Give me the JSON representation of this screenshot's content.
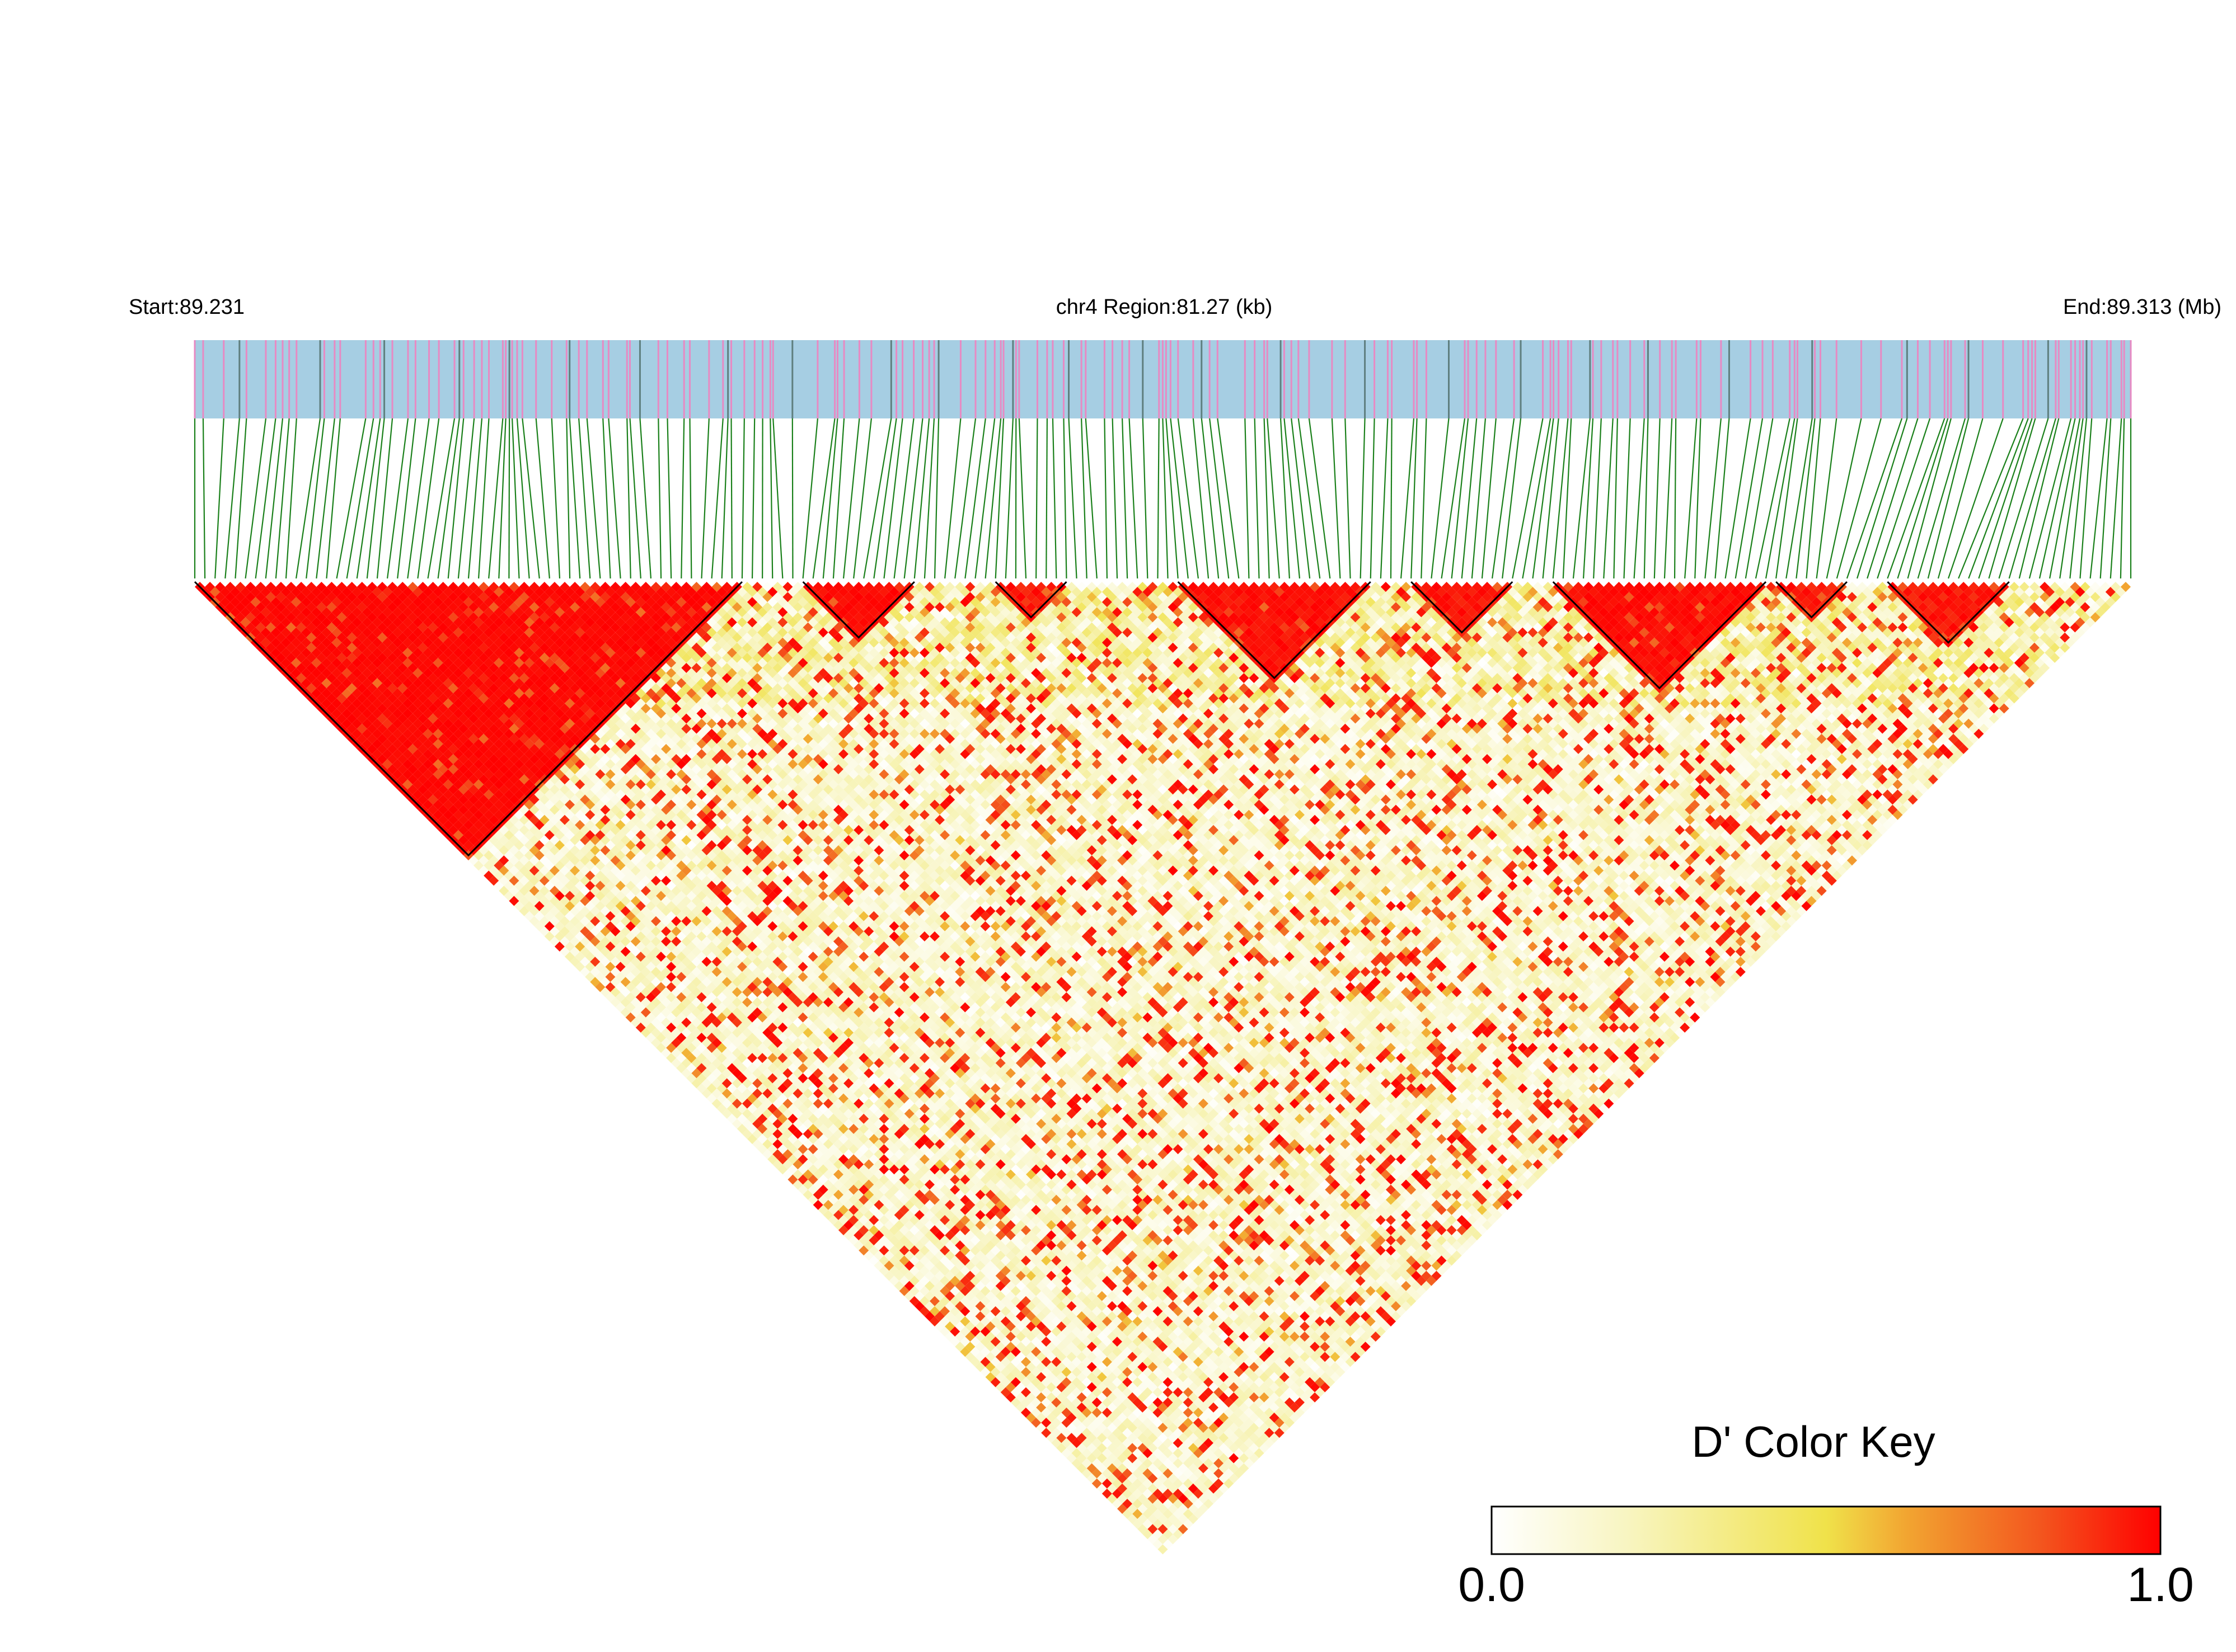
{
  "chart_data": {
    "type": "heatmap",
    "subtype": "linkage-disequilibrium-triangle",
    "chromosome": "chr4",
    "start_label": "Start:89.231",
    "region_label": "chr4 Region:81.27 (kb)",
    "end_label": "End:89.313 (Mb)",
    "start_mb": 89.231,
    "end_mb": 89.313,
    "region_kb": 81.27,
    "metric": "D'",
    "n_snps_approx": 192,
    "high_ld_blocks": [
      {
        "from_snp": 1,
        "to_snp": 55,
        "mean_dprime": 0.97
      },
      {
        "from_snp": 61,
        "to_snp": 72,
        "mean_dprime": 0.95
      },
      {
        "from_snp": 80,
        "to_snp": 87,
        "mean_dprime": 0.9
      },
      {
        "from_snp": 98,
        "to_snp": 117,
        "mean_dprime": 0.93
      },
      {
        "from_snp": 121,
        "to_snp": 131,
        "mean_dprime": 0.92
      },
      {
        "from_snp": 135,
        "to_snp": 156,
        "mean_dprime": 0.95
      },
      {
        "from_snp": 157,
        "to_snp": 164,
        "mean_dprime": 0.9
      },
      {
        "from_snp": 168,
        "to_snp": 180,
        "mean_dprime": 0.9
      }
    ],
    "color_key": {
      "title": "D' Color Key",
      "min_label": "0.0",
      "max_label": "1.0",
      "min": 0.0,
      "max": 1.0,
      "colors": [
        "#ffffff",
        "#f7f3b4",
        "#f0e24a",
        "#f39a2c",
        "#f04a1c",
        "#ff0000"
      ]
    },
    "track_colors": {
      "background": "#a6cee3",
      "snp_line": "#e78ac3",
      "snp_line_alt": "#5f7f7f",
      "connector": "#1a801a"
    }
  }
}
